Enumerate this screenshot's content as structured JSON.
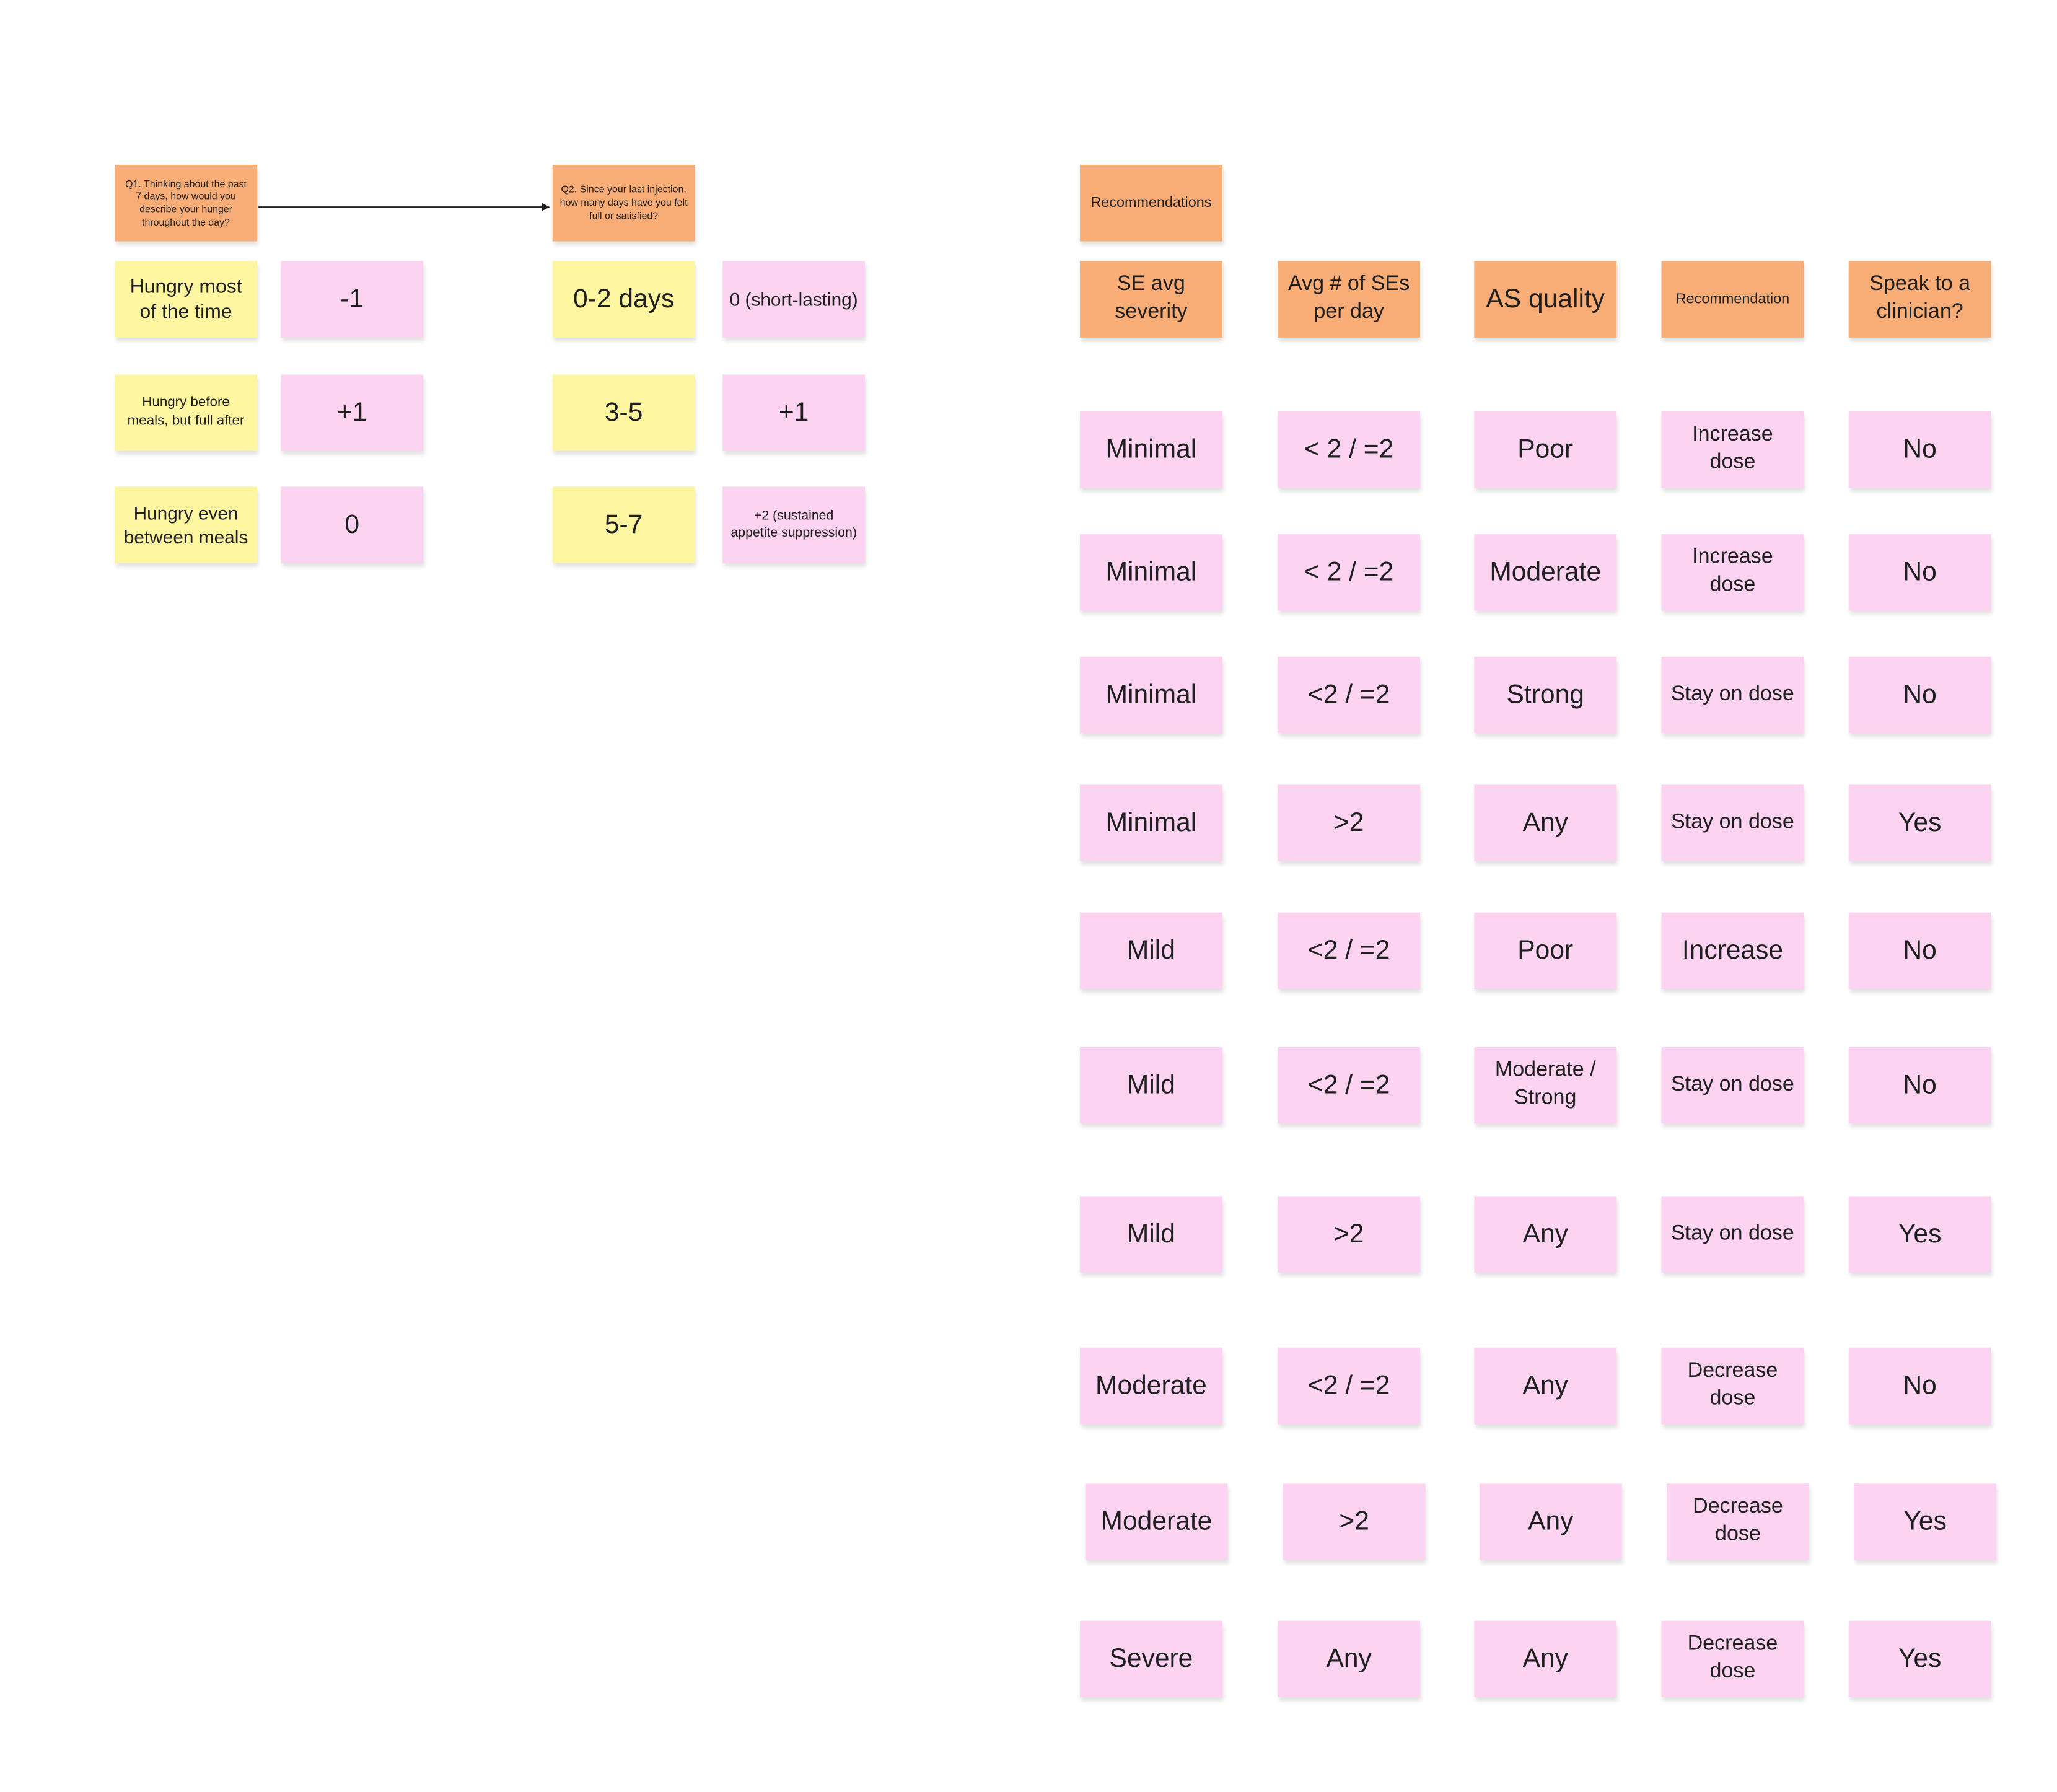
{
  "q1": {
    "question": "Q1. Thinking about the past 7 days, how would you describe your hunger throughout the day?",
    "options": [
      {
        "answer": "Hungry most of the time",
        "score": "-1"
      },
      {
        "answer": "Hungry before meals, but full after",
        "score": "+1"
      },
      {
        "answer": "Hungry even between meals",
        "score": "0"
      }
    ]
  },
  "q2": {
    "question": "Q2. Since your last injection, how many days have you felt full or satisfied?",
    "options": [
      {
        "answer": "0-2 days",
        "score": "0 (short-lasting)"
      },
      {
        "answer": "3-5",
        "score": "+1"
      },
      {
        "answer": "5-7",
        "score": "+2 (sustained appetite suppression)"
      }
    ]
  },
  "recommendations": {
    "title": "Recommendations",
    "headers": [
      "SE avg severity",
      "Avg # of SEs per day",
      "AS quality",
      "Recommendation",
      "Speak to a clinician?"
    ],
    "rows": [
      [
        "Minimal",
        "< 2 / =2",
        "Poor",
        "Increase dose",
        "No"
      ],
      [
        "Minimal",
        "< 2 / =2",
        "Moderate",
        "Increase dose",
        "No"
      ],
      [
        "Minimal",
        "<2 / =2",
        "Strong",
        "Stay on dose",
        "No"
      ],
      [
        "Minimal",
        ">2",
        "Any",
        "Stay on dose",
        "Yes"
      ],
      [
        "Mild",
        "<2 / =2",
        "Poor",
        "Increase",
        "No"
      ],
      [
        "Mild",
        "<2 / =2",
        "Moderate / Strong",
        "Stay on dose",
        "No"
      ],
      [
        "Mild",
        ">2",
        "Any",
        "Stay on dose",
        "Yes"
      ],
      [
        "Moderate",
        "<2 / =2",
        "Any",
        "Decrease dose",
        "No"
      ],
      [
        "Moderate",
        ">2",
        "Any",
        "Decrease dose",
        "Yes"
      ],
      [
        "Severe",
        "Any",
        "Any",
        "Decrease dose",
        "Yes"
      ]
    ]
  }
}
